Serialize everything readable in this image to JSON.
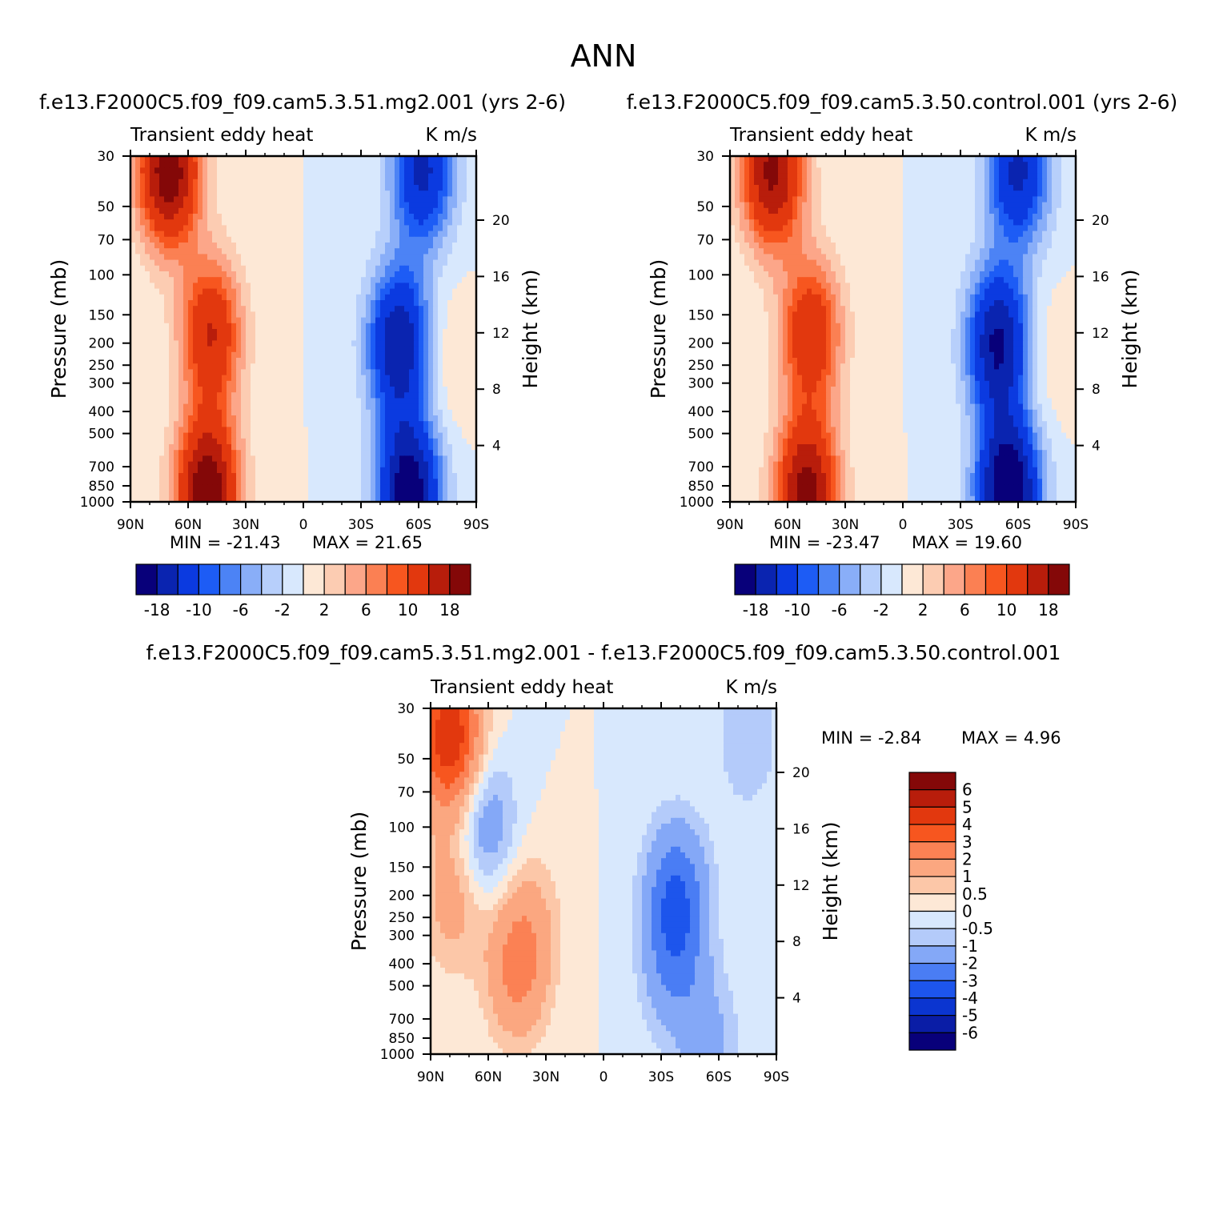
{
  "title": "ANN",
  "colors": {
    "main_scale": [
      "#08007a",
      "#0a24b0",
      "#0b3ae0",
      "#1d5cf5",
      "#4c83f5",
      "#89aef8",
      "#b7cffb",
      "#d8e8fd",
      "#fde8d6",
      "#fcccb2",
      "#fca689",
      "#fb8053",
      "#f7561f",
      "#e2380e",
      "#b81d0b",
      "#840808"
    ],
    "diff_scale": [
      "#08007a",
      "#0a1da6",
      "#0b35d0",
      "#1d55ec",
      "#4a7df4",
      "#84a8f7",
      "#b4cbfa",
      "#d8e8fd",
      "#fde8d6",
      "#fcc7a8",
      "#fba780",
      "#fb8154",
      "#f7561f",
      "#e2380e",
      "#b81d0b",
      "#840808"
    ]
  },
  "chart_data": [
    {
      "type": "heatmap",
      "panel": "top-left",
      "title": "f.e13.F2000C5.f09_f09.cam5.3.51.mg2.001 (yrs 2-6)",
      "left_string": "Transient  eddy  heat",
      "right_string": "K  m/s",
      "ylabel": "Pressure  (mb)",
      "ylabel_right": "Height  (km)",
      "x_ticks": [
        "90N",
        "60N",
        "30N",
        "0",
        "30S",
        "60S",
        "90S"
      ],
      "y_ticks": [
        30,
        50,
        70,
        100,
        150,
        200,
        250,
        300,
        400,
        500,
        700,
        850,
        1000
      ],
      "y_ticks_right": [
        20,
        16,
        12,
        8,
        4
      ],
      "min_label": "MIN  =  -21.43",
      "max_label": "MAX  =   21.65",
      "min": -21.43,
      "max": 21.65,
      "colorbar_labels": [
        "-18",
        "-10",
        "-6",
        "-2",
        "2",
        "6",
        "10",
        "18"
      ],
      "features": [
        {
          "lat": 70,
          "p": 35,
          "value": 21.0
        },
        {
          "lat": 48,
          "p": 180,
          "value": 14.0
        },
        {
          "lat": 50,
          "p": 900,
          "value": 21.65
        },
        {
          "lat": -50,
          "p": 200,
          "value": -18.0
        },
        {
          "lat": -55,
          "p": 900,
          "value": -21.43
        },
        {
          "lat": -62,
          "p": 35,
          "value": -15.0
        },
        {
          "lat": -72,
          "p": 240,
          "value": 2.5
        }
      ]
    },
    {
      "type": "heatmap",
      "panel": "top-right",
      "title": "f.e13.F2000C5.f09_f09.cam5.3.50.control.001 (yrs 2-6)",
      "left_string": "Transient  eddy  heat",
      "right_string": "K  m/s",
      "ylabel": "Pressure  (mb)",
      "ylabel_right": "Height  (km)",
      "x_ticks": [
        "90N",
        "60N",
        "30N",
        "0",
        "30S",
        "60S",
        "90S"
      ],
      "y_ticks": [
        30,
        50,
        70,
        100,
        150,
        200,
        250,
        300,
        400,
        500,
        700,
        850,
        1000
      ],
      "y_ticks_right": [
        20,
        16,
        12,
        8,
        4
      ],
      "min_label": "MIN  =  -23.47",
      "max_label": "MAX  =   19.60",
      "min": -23.47,
      "max": 19.6,
      "colorbar_labels": [
        "-18",
        "-10",
        "-6",
        "-2",
        "2",
        "6",
        "10",
        "18"
      ],
      "features": [
        {
          "lat": 68,
          "p": 35,
          "value": 19.0
        },
        {
          "lat": 48,
          "p": 180,
          "value": 13.5
        },
        {
          "lat": 50,
          "p": 900,
          "value": 19.6
        },
        {
          "lat": -50,
          "p": 200,
          "value": -19.0
        },
        {
          "lat": -55,
          "p": 900,
          "value": -23.47
        },
        {
          "lat": -60,
          "p": 35,
          "value": -15.0
        },
        {
          "lat": -72,
          "p": 240,
          "value": 2.2
        }
      ]
    },
    {
      "type": "heatmap",
      "panel": "bottom-difference",
      "title": "f.e13.F2000C5.f09_f09.cam5.3.51.mg2.001 - f.e13.F2000C5.f09_f09.cam5.3.50.control.001",
      "left_string": "Transient  eddy  heat",
      "right_string": "K  m/s",
      "ylabel": "Pressure  (mb)",
      "ylabel_right": "Height  (km)",
      "x_ticks": [
        "90N",
        "60N",
        "30N",
        "0",
        "30S",
        "60S",
        "90S"
      ],
      "y_ticks": [
        30,
        50,
        70,
        100,
        150,
        200,
        250,
        300,
        400,
        500,
        700,
        850,
        1000
      ],
      "y_ticks_right": [
        20,
        16,
        12,
        8,
        4
      ],
      "min_label": "MIN  =    -2.84",
      "max_label": "MAX  =     4.96",
      "min": -2.84,
      "max": 4.96,
      "colorbar_labels": [
        "6",
        "5",
        "4",
        "3",
        "2",
        "1",
        "0.5",
        "0",
        "-0.5",
        "-1",
        "-2",
        "-3",
        "-4",
        "-5",
        "-6"
      ],
      "features": [
        {
          "lat": 80,
          "p": 40,
          "value": 4.96
        },
        {
          "lat": 78,
          "p": 200,
          "value": 1.5
        },
        {
          "lat": 62,
          "p": 100,
          "value": -1.8
        },
        {
          "lat": 45,
          "p": 420,
          "value": 2.2
        },
        {
          "lat": 38,
          "p": 250,
          "value": 0.8
        },
        {
          "lat": -38,
          "p": 200,
          "value": -2.84
        },
        {
          "lat": -36,
          "p": 420,
          "value": -1.6
        },
        {
          "lat": -55,
          "p": 900,
          "value": -1.2
        },
        {
          "lat": -75,
          "p": 40,
          "value": -1.0
        }
      ]
    }
  ]
}
